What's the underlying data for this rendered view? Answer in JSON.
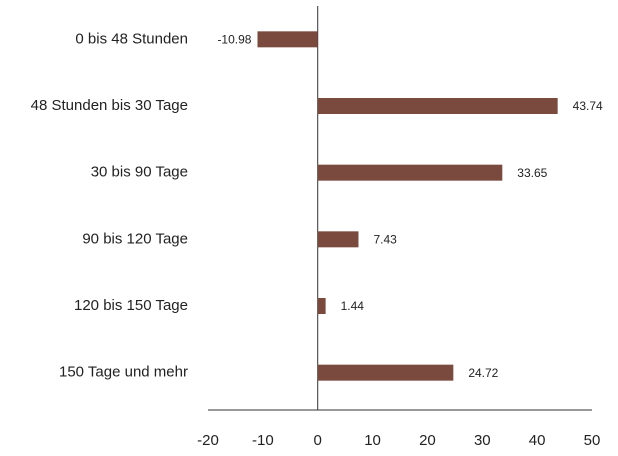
{
  "chart_data": {
    "type": "barh",
    "categories": [
      "0 bis 48 Stunden",
      "48 Stunden bis 30 Tage",
      "30 bis 90 Tage",
      "90 bis 120 Tage",
      "120 bis 150 Tage",
      "150 Tage und mehr"
    ],
    "values": [
      -10.98,
      43.74,
      33.65,
      7.43,
      1.44,
      24.72
    ],
    "color": "#7b4a3f",
    "xlim": [
      -20,
      50
    ],
    "xticks": [
      -20,
      -10,
      0,
      10,
      20,
      30,
      40,
      50
    ]
  }
}
